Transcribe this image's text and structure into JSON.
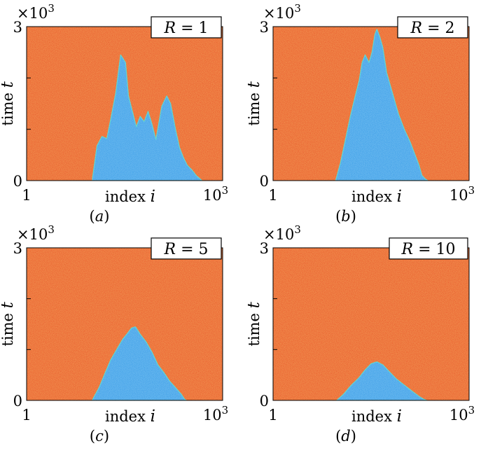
{
  "chart_data": [
    {
      "type": "heatmap",
      "caption": "(a)",
      "legend": {
        "label": "R = 1",
        "var": "R",
        "value": "1",
        "placement": "top-right"
      },
      "xlabel": "index",
      "xvar": "i",
      "ylabel": "time",
      "yvar": "t",
      "x_tick_labels": [
        "1",
        "10",
        "3"
      ],
      "y_tick_labels": [
        "3",
        "0"
      ],
      "y_multiplier": {
        "base": "×10",
        "exp": "3"
      },
      "xlim": [
        1,
        1000
      ],
      "ylim": [
        0,
        3000
      ],
      "colors": {
        "background_state": "#e8401c",
        "cluster_state": "#2196e6"
      },
      "cluster_boundary": {
        "i": [
          335,
          360,
          385,
          410,
          430,
          455,
          480,
          505,
          520,
          540,
          560,
          580,
          600,
          620,
          640,
          660,
          690,
          715,
          735,
          760,
          780,
          800,
          820,
          845,
          865,
          895
        ],
        "t": [
          0,
          680,
          860,
          820,
          1200,
          1700,
          2450,
          2300,
          1650,
          1350,
          1050,
          1250,
          1150,
          1350,
          1100,
          800,
          1450,
          1650,
          1500,
          1000,
          650,
          450,
          300,
          200,
          100,
          0
        ]
      }
    },
    {
      "type": "heatmap",
      "caption": "(b)",
      "legend": {
        "label": "R = 2",
        "var": "R",
        "value": "2",
        "placement": "top-right"
      },
      "xlabel": "index",
      "xvar": "i",
      "ylabel": "time",
      "yvar": "t",
      "x_tick_labels": [
        "1",
        "10",
        "3"
      ],
      "y_tick_labels": [
        "3",
        "0"
      ],
      "y_multiplier": {
        "base": "×10",
        "exp": "3"
      },
      "xlim": [
        1,
        1000
      ],
      "ylim": [
        0,
        3000
      ],
      "colors": {
        "background_state": "#e8401c",
        "cluster_state": "#2196e6"
      },
      "cluster_boundary": {
        "i": [
          320,
          345,
          370,
          395,
          420,
          440,
          455,
          470,
          490,
          505,
          520,
          530,
          545,
          560,
          580,
          610,
          640,
          670,
          700,
          725,
          745,
          760,
          775,
          790
        ],
        "t": [
          0,
          350,
          800,
          1250,
          1650,
          1950,
          2300,
          2450,
          2300,
          2500,
          2850,
          2950,
          2800,
          2600,
          2100,
          1700,
          1300,
          1000,
          750,
          500,
          300,
          100,
          40,
          0
        ]
      }
    },
    {
      "type": "heatmap",
      "caption": "(c)",
      "legend": {
        "label": "R = 5",
        "var": "R",
        "value": "5",
        "placement": "top-right"
      },
      "xlabel": "index",
      "xvar": "i",
      "ylabel": "time",
      "yvar": "t",
      "x_tick_labels": [
        "1",
        "10",
        "3"
      ],
      "y_tick_labels": [
        "3",
        "0"
      ],
      "y_multiplier": {
        "base": "×10",
        "exp": "3"
      },
      "xlim": [
        1,
        1000
      ],
      "ylim": [
        0,
        3000
      ],
      "colors": {
        "background_state": "#e8401c",
        "cluster_state": "#2196e6"
      },
      "cluster_boundary": {
        "i": [
          335,
          370,
          400,
          430,
          460,
          490,
          515,
          535,
          555,
          580,
          610,
          640,
          670,
          700,
          730,
          760,
          790,
          805,
          815
        ],
        "t": [
          0,
          250,
          530,
          800,
          1000,
          1200,
          1320,
          1420,
          1450,
          1300,
          1150,
          950,
          700,
          550,
          380,
          250,
          120,
          30,
          0
        ]
      }
    },
    {
      "type": "heatmap",
      "caption": "(d)",
      "legend": {
        "label": "R = 10",
        "var": "R",
        "value": "10",
        "placement": "top-right"
      },
      "xlabel": "index",
      "xvar": "i",
      "ylabel": "time",
      "yvar": "t",
      "x_tick_labels": [
        "1",
        "10",
        "3"
      ],
      "y_tick_labels": [
        "3",
        "0"
      ],
      "y_multiplier": {
        "base": "×10",
        "exp": "3"
      },
      "xlim": [
        1,
        1000
      ],
      "ylim": [
        0,
        3000
      ],
      "colors": {
        "background_state": "#e8401c",
        "cluster_state": "#2196e6"
      },
      "cluster_boundary": {
        "i": [
          325,
          360,
          400,
          440,
          470,
          500,
          530,
          560,
          590,
          630,
          670,
          710,
          745,
          770,
          785
        ],
        "t": [
          0,
          120,
          300,
          450,
          600,
          720,
          760,
          700,
          580,
          420,
          300,
          180,
          80,
          20,
          0
        ]
      }
    }
  ]
}
